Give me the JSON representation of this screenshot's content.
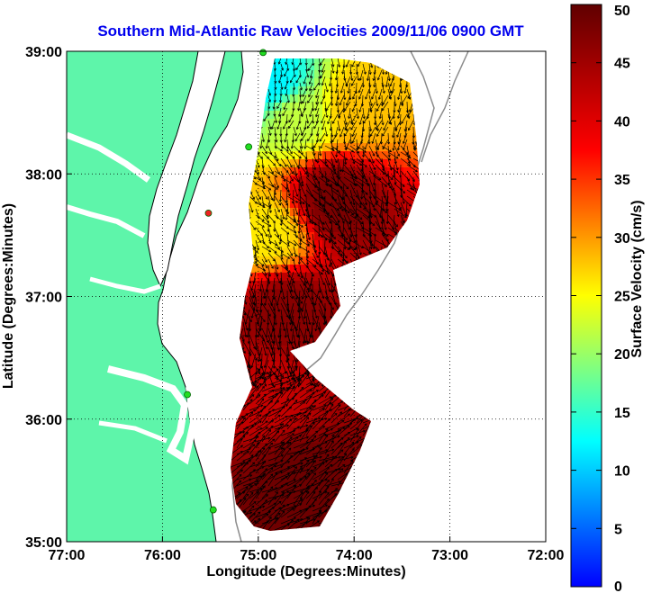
{
  "chart_data": {
    "type": "heatmap",
    "title": "Southern Mid-Atlantic Raw Velocities 2009/11/06 0900 GMT",
    "title_color": "#0000ee",
    "xlabel": "Longitude (Degrees:Minutes)",
    "ylabel": "Latitude (Degrees:Minutes)",
    "colorbar_label": "Surface Velocity (cm/s)",
    "xlim": [
      -77,
      -72
    ],
    "ylim": [
      35,
      39
    ],
    "x_ticks": [
      {
        "value": -77,
        "label": "77:00"
      },
      {
        "value": -76,
        "label": "76:00"
      },
      {
        "value": -75,
        "label": "75:00"
      },
      {
        "value": -74,
        "label": "74:00"
      },
      {
        "value": -73,
        "label": "73:00"
      },
      {
        "value": -72,
        "label": "72:00"
      }
    ],
    "y_ticks": [
      {
        "value": 35,
        "label": "35:00"
      },
      {
        "value": 36,
        "label": "36:00"
      },
      {
        "value": 37,
        "label": "37:00"
      },
      {
        "value": 38,
        "label": "38:00"
      },
      {
        "value": 39,
        "label": "39:00"
      }
    ],
    "colorbar_range": [
      0,
      50
    ],
    "colorbar_ticks": [
      0,
      5,
      10,
      15,
      20,
      25,
      30,
      35,
      40,
      45,
      50
    ],
    "grid": "dotted",
    "land_color": "#5ef5aa",
    "water_color": "#ffffff",
    "coastline_color": "#000000",
    "bathymetry_color": "#8c8c8c",
    "arrow_color": "#000000",
    "colormap": "jet",
    "stations": [
      {
        "lon": -74.95,
        "lat": 38.99,
        "color": "#22dd22"
      },
      {
        "lon": -75.1,
        "lat": 38.22,
        "color": "#22dd22"
      },
      {
        "lon": -75.52,
        "lat": 37.68,
        "color": "#ee2222"
      },
      {
        "lon": -75.74,
        "lat": 36.2,
        "color": "#22dd22"
      },
      {
        "lon": -75.47,
        "lat": 35.26,
        "color": "#22dd22"
      }
    ],
    "velocity_regions": [
      {
        "name": "northern-cluster",
        "lon": -74.85,
        "lat": 38.75,
        "speed": 12
      },
      {
        "name": "north-east-edge",
        "lon": -73.95,
        "lat": 38.55,
        "speed": 28
      },
      {
        "name": "north-upper",
        "lon": -74.6,
        "lat": 38.45,
        "speed": 22
      },
      {
        "name": "mid-north",
        "lon": -74.2,
        "lat": 37.8,
        "speed": 48
      },
      {
        "name": "mid-west",
        "lon": -74.9,
        "lat": 37.5,
        "speed": 26
      },
      {
        "name": "mid-south",
        "lon": -74.7,
        "lat": 36.9,
        "speed": 47
      },
      {
        "name": "south-upper",
        "lon": -74.9,
        "lat": 36.2,
        "speed": 42
      },
      {
        "name": "south-lower",
        "lon": -74.6,
        "lat": 35.5,
        "speed": 49
      }
    ]
  }
}
